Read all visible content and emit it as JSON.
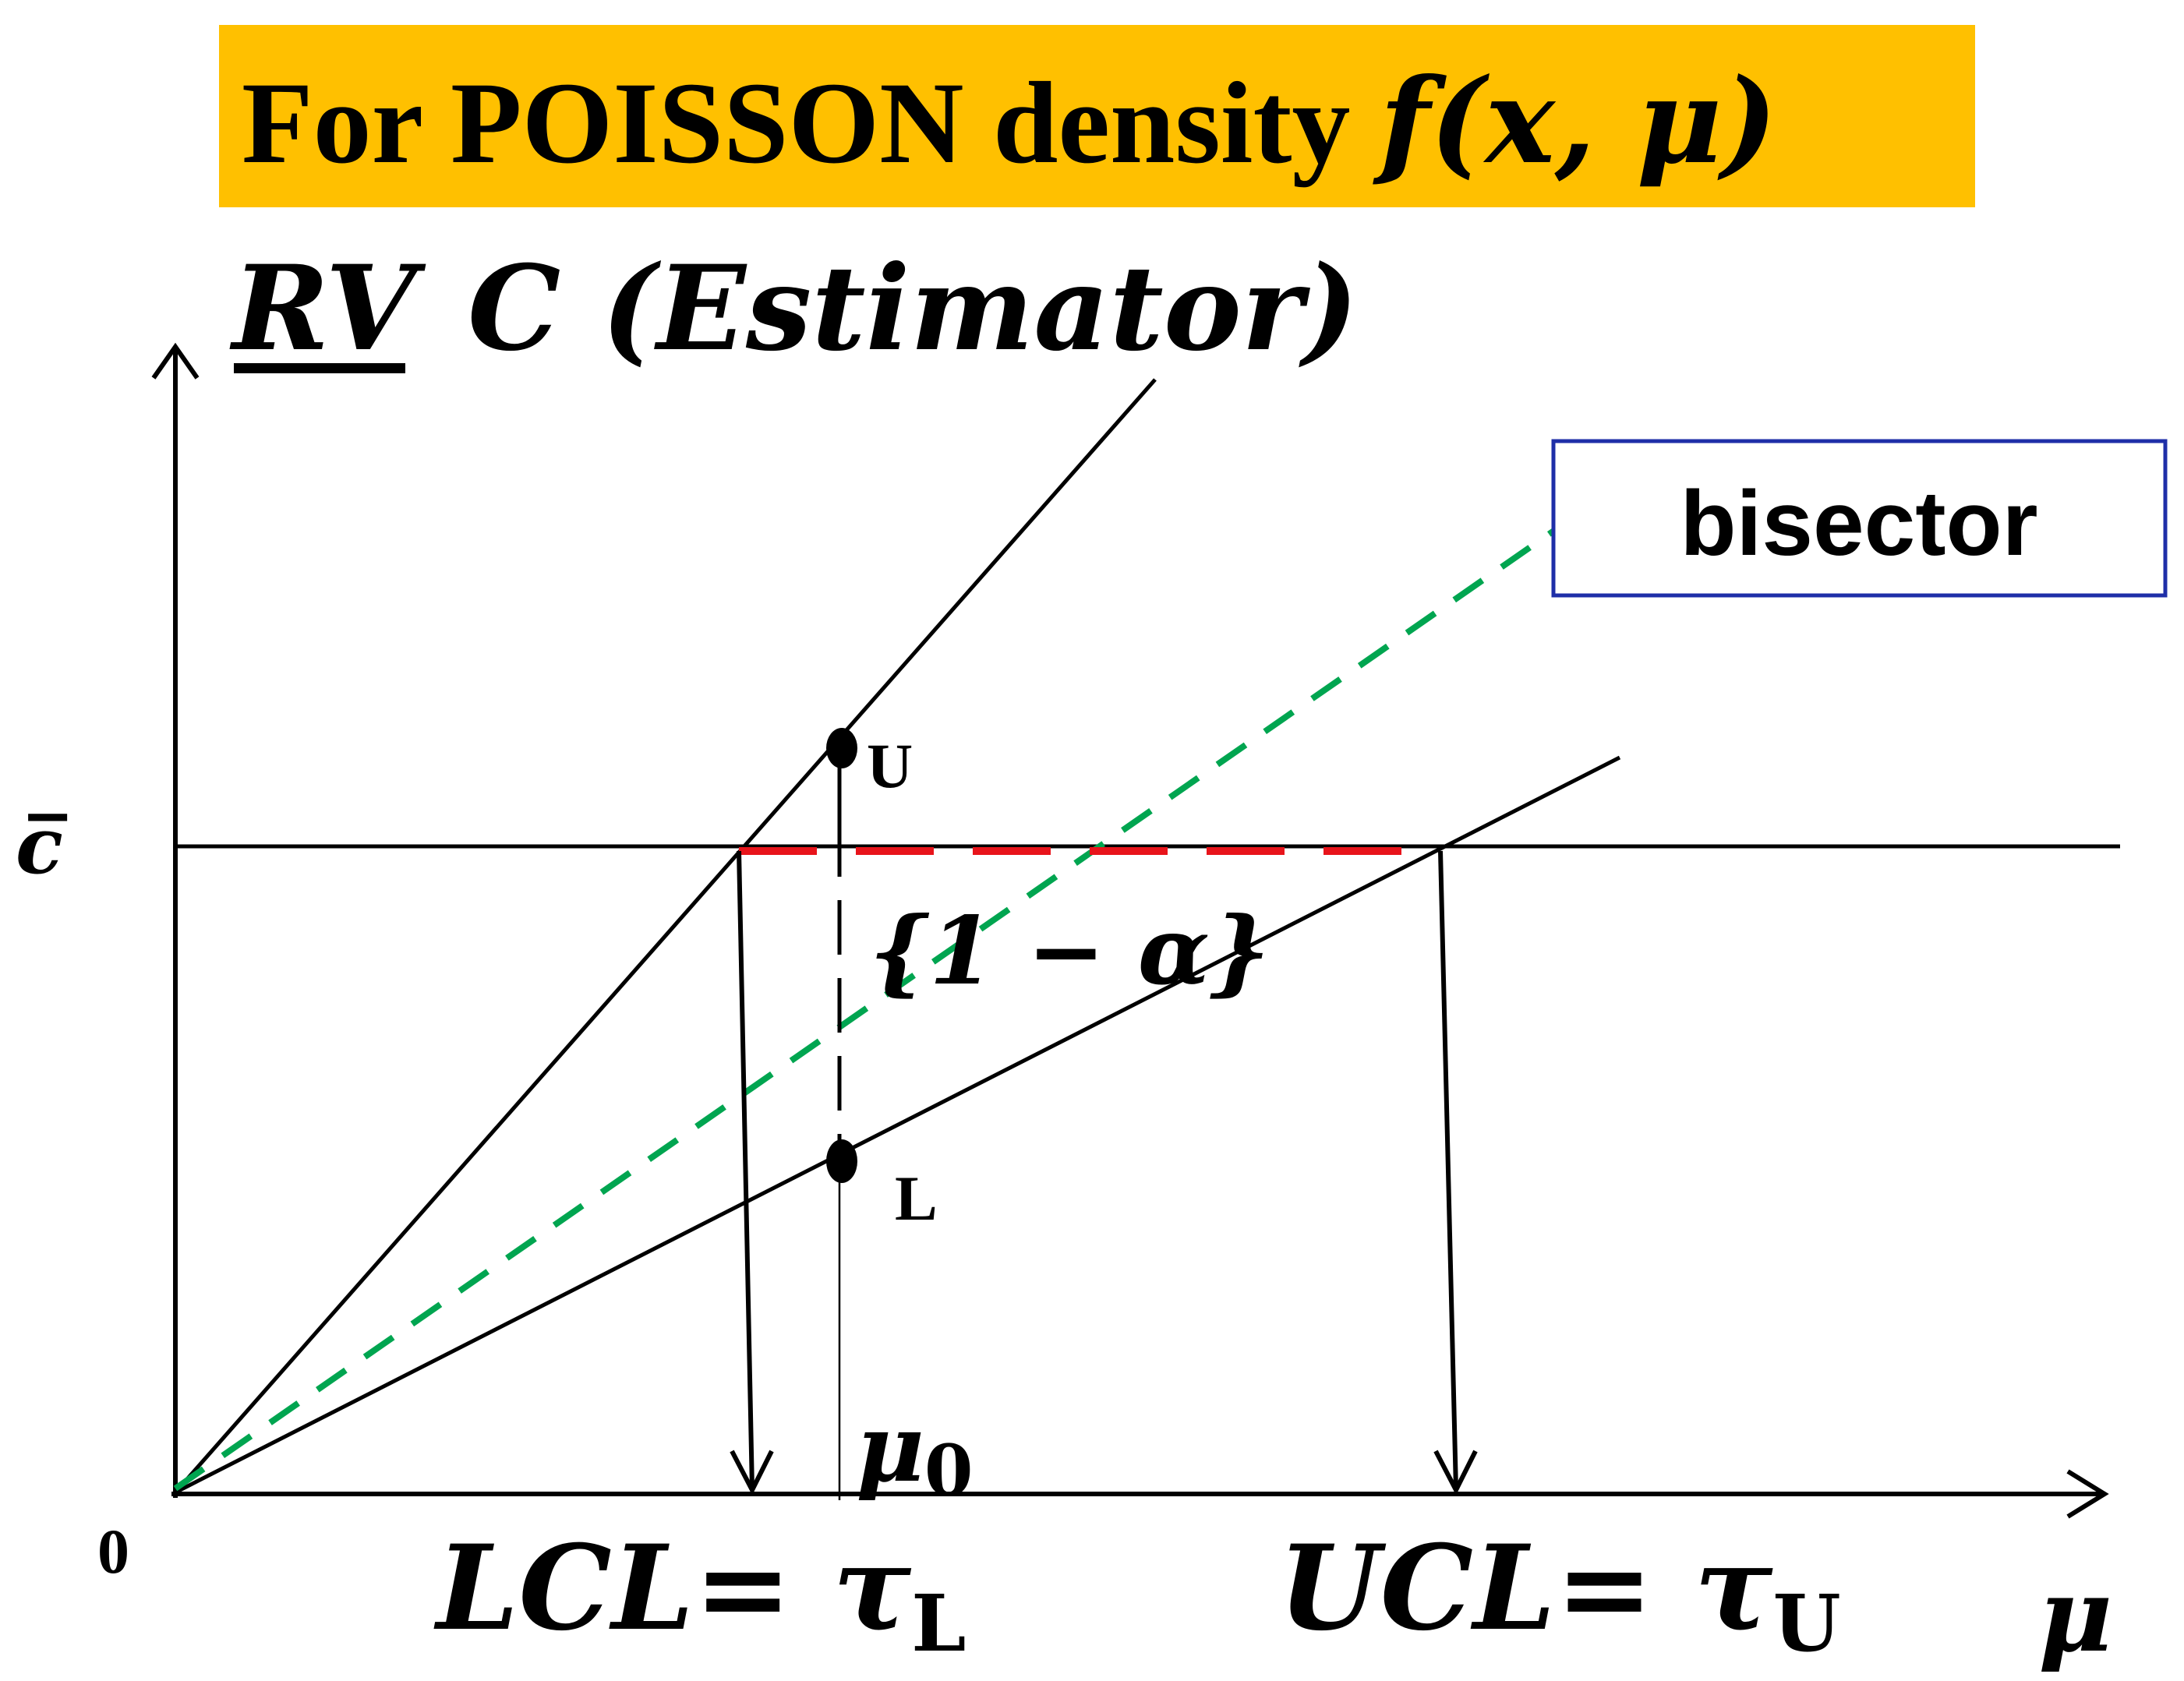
{
  "title": {
    "prefix": "For  POISSON density ",
    "func": "f",
    "args": "(x, μ)",
    "background": "#FFC000"
  },
  "axis_label_y": {
    "rv": "RV",
    "rest": "C (Estimator)"
  },
  "origin_label": "0",
  "cbar_label": "c̅",
  "x_axis_label": "μ",
  "mu0_label": {
    "base": "μ",
    "sub": "0"
  },
  "point_u_label": "U",
  "point_l_label": "L",
  "confidence_label": "{1 − α}",
  "lcl_label": {
    "base": "LCL= τ",
    "sub": "L"
  },
  "ucl_label": {
    "base": "UCL= τ",
    "sub": "U"
  },
  "legend": {
    "label": "bisector",
    "border_color": "#1F2FA8"
  },
  "colors": {
    "bisector": "#00A550",
    "interval": "#E8141B",
    "ink": "#000000"
  }
}
